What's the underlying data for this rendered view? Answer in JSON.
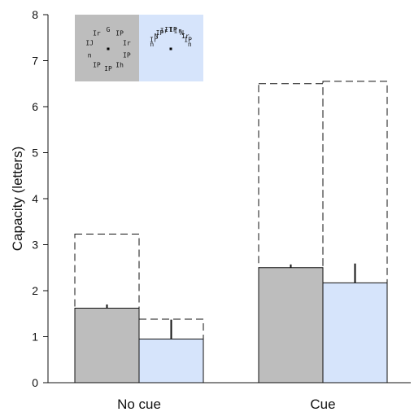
{
  "chart_data": {
    "type": "bar",
    "title": "",
    "xlabel": "",
    "ylabel": "Capacity (letters)",
    "ylim": [
      0,
      8
    ],
    "yticks": [
      "0",
      "1",
      "2",
      "3",
      "4",
      "5",
      "6",
      "7",
      "8"
    ],
    "categories": [
      "No cue",
      "Cue"
    ],
    "series": [
      {
        "color": "#bdbdbd",
        "values": [
          1.62,
          2.5
        ],
        "errors": [
          0.08,
          0.07
        ],
        "ceiling": [
          3.23,
          6.5
        ]
      },
      {
        "color": "#d6e4fb",
        "values": [
          0.95,
          2.17
        ],
        "errors": [
          0.42,
          0.42
        ],
        "ceiling": [
          1.38,
          6.55
        ]
      }
    ],
    "grid": false,
    "legend": "none",
    "inset": {
      "panels": [
        {
          "color": "#bdbdbd",
          "letters": [
            "G",
            "IP",
            "Ir",
            "IP",
            "Ih",
            "IP",
            "IP",
            "n",
            "IJ",
            "Ir"
          ]
        },
        {
          "color": "#d6e4fb",
          "letters": [
            "n",
            "Ir",
            "N",
            "IP",
            "Ir",
            "IT",
            "IP",
            "Ir",
            "N",
            "Ir",
            "IP",
            "n"
          ]
        }
      ]
    }
  }
}
